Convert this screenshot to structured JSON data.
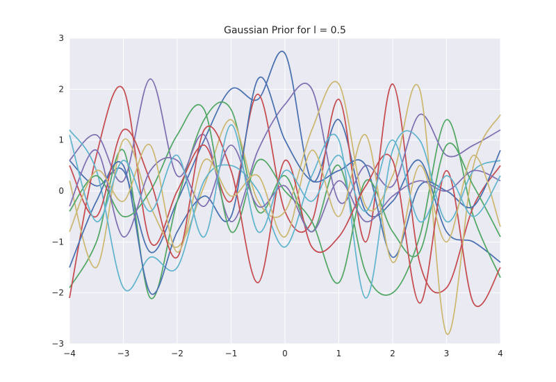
{
  "chart_data": {
    "type": "line",
    "title": "Gaussian Prior for l = 0.5",
    "xlabel": "",
    "ylabel": "",
    "xlim": [
      -4,
      4
    ],
    "ylim": [
      -3,
      3
    ],
    "xticks": [
      -4,
      -3,
      -2,
      -1,
      0,
      1,
      2,
      3,
      4
    ],
    "yticks": [
      -3,
      -2,
      -1,
      0,
      1,
      2,
      3
    ],
    "grid": true,
    "legend": "none",
    "background": "#eaeaf2",
    "x": [
      -4,
      -3.5,
      -3,
      -2.5,
      -2,
      -1.5,
      -1,
      -0.5,
      0,
      0.5,
      1,
      1.5,
      2,
      2.5,
      3,
      3.5,
      4
    ],
    "series": [
      {
        "color": "#4c72b0",
        "values": [
          0.6,
          0.1,
          0.4,
          -1.2,
          -0.2,
          1.0,
          2.0,
          1.8,
          2.7,
          0.2,
          1.4,
          -0.4,
          -0.2,
          0.6,
          -0.8,
          -1.0,
          -1.4
        ]
      },
      {
        "color": "#55a868",
        "values": [
          -1.9,
          -1.0,
          0.8,
          -2.1,
          -0.2,
          1.4,
          1.6,
          -0.4,
          0.3,
          -0.8,
          0.5,
          -1.6,
          -2.0,
          -0.9,
          1.4,
          -0.5,
          -1.7
        ]
      },
      {
        "color": "#c44e52",
        "values": [
          -2.1,
          0.7,
          2.0,
          -1.0,
          0.0,
          0.9,
          -0.2,
          1.9,
          -0.4,
          -0.6,
          1.8,
          -1.0,
          2.1,
          -1.4,
          -1.9,
          -0.3,
          0.5
        ]
      },
      {
        "color": "#8172b2",
        "values": [
          0.6,
          1.1,
          0.2,
          2.2,
          0.3,
          1.1,
          -0.6,
          0.8,
          1.7,
          2.0,
          -0.2,
          0.5,
          0.1,
          1.5,
          0.7,
          0.9,
          1.2
        ]
      },
      {
        "color": "#ccb974",
        "values": [
          0.2,
          -1.5,
          1.0,
          -0.3,
          -1.1,
          0.1,
          1.4,
          -0.2,
          -0.4,
          1.2,
          2.1,
          -0.3,
          0.3,
          2.0,
          -2.8,
          0.5,
          1.5
        ]
      },
      {
        "color": "#64b5cd",
        "values": [
          1.2,
          0.4,
          -1.9,
          -1.3,
          -1.5,
          0.2,
          0.5,
          0.0,
          -1.1,
          0.3,
          1.0,
          -2.1,
          0.8,
          1.0,
          -0.6,
          0.4,
          0.6
        ]
      },
      {
        "color": "#4c72b0",
        "values": [
          -1.5,
          -0.2,
          0.5,
          -2.0,
          -0.8,
          -0.1,
          -0.5,
          2.2,
          1.0,
          0.2,
          0.4,
          0.5,
          -1.3,
          0.1,
          0.0,
          -0.3,
          0.8
        ]
      },
      {
        "color": "#55a868",
        "values": [
          -0.4,
          0.3,
          -0.5,
          0.0,
          1.1,
          1.6,
          -0.8,
          0.6,
          0.0,
          -0.6,
          -1.8,
          0.2,
          -0.8,
          -1.2,
          0.9,
          0.1,
          -0.9
        ]
      },
      {
        "color": "#c44e52",
        "values": [
          0.5,
          -0.5,
          1.2,
          0.2,
          -1.3,
          1.2,
          0.4,
          -1.8,
          0.6,
          -1.1,
          -0.9,
          0.1,
          0.6,
          -2.2,
          0.4,
          -2.2,
          -1.5
        ]
      },
      {
        "color": "#8172b2",
        "values": [
          -0.3,
          0.8,
          -0.9,
          0.4,
          0.6,
          -0.3,
          0.9,
          -0.3,
          0.1,
          -0.8,
          0.2,
          -0.6,
          -0.1,
          0.2,
          0.0,
          0.4,
          0.2
        ]
      },
      {
        "color": "#ccb974",
        "values": [
          -0.8,
          0.4,
          -0.2,
          0.9,
          -1.2,
          0.6,
          -0.1,
          0.3,
          -0.9,
          0.8,
          -0.5,
          1.1,
          -1.4,
          0.5,
          -1.0,
          0.7,
          -0.7
        ]
      },
      {
        "color": "#64b5cd",
        "values": [
          1.1,
          -0.6,
          0.6,
          -0.4,
          0.7,
          -0.9,
          1.3,
          -0.8,
          0.4,
          -0.2,
          0.7,
          -0.4,
          1.0,
          -0.6,
          0.3,
          -0.5,
          0.3
        ]
      }
    ]
  }
}
